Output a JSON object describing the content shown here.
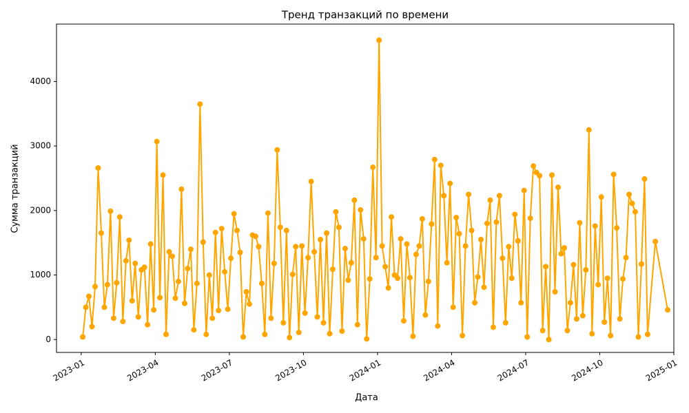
{
  "chart_data": {
    "type": "line",
    "title": "Тренд транзакций по времени",
    "x_label": "Дата",
    "y_label": "Сумма транзакций",
    "x": [
      "2023-01",
      "2023-01",
      "2023-01",
      "2023-01",
      "2023-01",
      "2023-01",
      "2023-01",
      "2023-01",
      "2023-02",
      "2023-02",
      "2023-02",
      "2023-02",
      "2023-02",
      "2023-02",
      "2023-02",
      "2023-02",
      "2023-03",
      "2023-03",
      "2023-03",
      "2023-03",
      "2023-03",
      "2023-03",
      "2023-03",
      "2023-03",
      "2023-04",
      "2023-04",
      "2023-04",
      "2023-04",
      "2023-04",
      "2023-04",
      "2023-04",
      "2023-04",
      "2023-05",
      "2023-05",
      "2023-05",
      "2023-05",
      "2023-05",
      "2023-05",
      "2023-05",
      "2023-05",
      "2023-06",
      "2023-06",
      "2023-06",
      "2023-06",
      "2023-06",
      "2023-06",
      "2023-06",
      "2023-06",
      "2023-07",
      "2023-07",
      "2023-07",
      "2023-07",
      "2023-07",
      "2023-07",
      "2023-07",
      "2023-07",
      "2023-08",
      "2023-08",
      "2023-08",
      "2023-08",
      "2023-08",
      "2023-08",
      "2023-08",
      "2023-08",
      "2023-09",
      "2023-09",
      "2023-09",
      "2023-09",
      "2023-09",
      "2023-09",
      "2023-09",
      "2023-09",
      "2023-10",
      "2023-10",
      "2023-10",
      "2023-10",
      "2023-10",
      "2023-10",
      "2023-10",
      "2023-10",
      "2023-11",
      "2023-11",
      "2023-11",
      "2023-11",
      "2023-11",
      "2023-11",
      "2023-11",
      "2023-11",
      "2023-12",
      "2023-12",
      "2023-12",
      "2023-12",
      "2023-12",
      "2023-12",
      "2023-12",
      "2023-12",
      "2024-01",
      "2024-01",
      "2024-01",
      "2024-01",
      "2024-01",
      "2024-01",
      "2024-01",
      "2024-01",
      "2024-02",
      "2024-02",
      "2024-02",
      "2024-02",
      "2024-02",
      "2024-02",
      "2024-02",
      "2024-02",
      "2024-03",
      "2024-03",
      "2024-03",
      "2024-03",
      "2024-03",
      "2024-03",
      "2024-03",
      "2024-03",
      "2024-04",
      "2024-04",
      "2024-04",
      "2024-04",
      "2024-04",
      "2024-04",
      "2024-04",
      "2024-04",
      "2024-05",
      "2024-05",
      "2024-05",
      "2024-05",
      "2024-05",
      "2024-05",
      "2024-05",
      "2024-05",
      "2024-06",
      "2024-06",
      "2024-06",
      "2024-06",
      "2024-06",
      "2024-06",
      "2024-06",
      "2024-06",
      "2024-07",
      "2024-07",
      "2024-07",
      "2024-07",
      "2024-07",
      "2024-07",
      "2024-07",
      "2024-07",
      "2024-08",
      "2024-08",
      "2024-08",
      "2024-08",
      "2024-08",
      "2024-08",
      "2024-08",
      "2024-08",
      "2024-09",
      "2024-09",
      "2024-09",
      "2024-09",
      "2024-09",
      "2024-09",
      "2024-09",
      "2024-09",
      "2024-10",
      "2024-10",
      "2024-10",
      "2024-10",
      "2024-10",
      "2024-10",
      "2024-10",
      "2024-10",
      "2024-11",
      "2024-11",
      "2024-11",
      "2024-11",
      "2024-11",
      "2024-11",
      "2024-11",
      "2024-11",
      "2024-12",
      "2024-12"
    ],
    "series": [
      {
        "color": "#ffa500",
        "values": [
          40,
          500,
          670,
          200,
          820,
          2660,
          1650,
          500,
          850,
          1990,
          330,
          880,
          1900,
          280,
          1220,
          1540,
          600,
          1180,
          350,
          1080,
          1120,
          230,
          1480,
          460,
          3070,
          650,
          2550,
          80,
          1360,
          1290,
          640,
          900,
          2330,
          560,
          1100,
          1400,
          150,
          870,
          3650,
          1510,
          80,
          1000,
          330,
          1660,
          450,
          1720,
          1050,
          470,
          1260,
          1950,
          1690,
          1350,
          40,
          740,
          550,
          1620,
          1600,
          1440,
          870,
          80,
          1960,
          330,
          1180,
          2940,
          1740,
          260,
          1690,
          30,
          1010,
          1440,
          110,
          1450,
          410,
          1270,
          2450,
          1360,
          350,
          1550,
          260,
          1650,
          90,
          1090,
          1980,
          1740,
          130,
          1410,
          920,
          1190,
          2160,
          230,
          2010,
          1560,
          10,
          940,
          2670,
          1270,
          4640,
          1450,
          1130,
          800,
          1900,
          1000,
          950,
          1560,
          290,
          1480,
          960,
          50,
          1320,
          1450,
          1870,
          380,
          900,
          1790,
          2790,
          210,
          2700,
          2230,
          1190,
          2420,
          500,
          1890,
          1640,
          60,
          1450,
          2250,
          1690,
          570,
          970,
          1550,
          810,
          1800,
          2160,
          190,
          1820,
          2230,
          1260,
          260,
          1440,
          950,
          1940,
          1530,
          570,
          2310,
          40,
          1880,
          2690,
          2590,
          2540,
          140,
          1130,
          0,
          2550,
          740,
          2360,
          1330,
          1420,
          140,
          570,
          1160,
          320,
          1810,
          370,
          1080,
          3250,
          90,
          1760,
          850,
          2210,
          270,
          950,
          60,
          2560,
          1730,
          320,
          940,
          1270,
          2250,
          2110,
          1980,
          40,
          1170,
          2490,
          80,
          1520,
          460
        ]
      }
    ],
    "xlim": [
      "2022-12",
      "2025-01"
    ],
    "xticks": [
      "2023-01",
      "2023-04",
      "2023-07",
      "2023-10",
      "2024-01",
      "2024-04",
      "2024-07",
      "2024-10",
      "2025-01"
    ],
    "ylim": [
      -200,
      4890
    ],
    "yticks": [
      0,
      1000,
      2000,
      3000,
      4000
    ]
  }
}
